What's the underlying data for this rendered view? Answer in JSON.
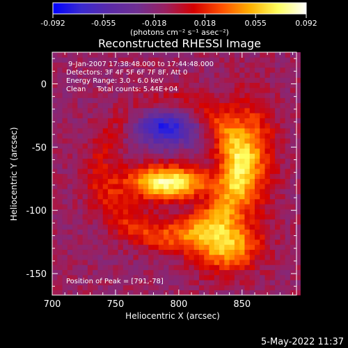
{
  "chart_data": {
    "type": "heatmap",
    "title": "Reconstructed RHESSI Image",
    "xlabel": "Heliocentric X (arcsec)",
    "ylabel": "Heliocentric Y (arcsec)",
    "xlim": [
      700,
      893
    ],
    "ylim": [
      -167,
      25
    ],
    "xticks": [
      700,
      750,
      800,
      850
    ],
    "yticks": [
      0,
      -50,
      -100,
      -150
    ],
    "colorbar": {
      "min": -0.092,
      "max": 0.092,
      "ticks": [
        "-0.092",
        "-0.055",
        "-0.018",
        "0.018",
        "0.055",
        "0.092"
      ],
      "units": "(photons cm⁻² s⁻¹ asec⁻²)",
      "colors": [
        "#0000ff",
        "#3a2ad0",
        "#5a2aa8",
        "#6f2f92",
        "#9a2060",
        "#d40000",
        "#ff5000",
        "#ffb000",
        "#ffff60",
        "#ffffff"
      ]
    },
    "annotations": {
      "time": "9-Jan-2007 17:38:48.000 to 17:44:48.000",
      "detectors": "Detectors: 3F 4F 5F 6F 7F 8F, Att 0",
      "energy": "Energy Range: 3.0 - 6.0 keV",
      "clean": "Clean     Total counts: 5.44E+04",
      "peak": "Position of Peak = [791,-78]"
    },
    "features": [
      {
        "kind": "peak",
        "x": 791,
        "y": -78,
        "amp": 0.092,
        "sx": 22,
        "sy": 9
      },
      {
        "kind": "ring",
        "cx": 792,
        "cy": -68,
        "r": 54,
        "amp": 0.045
      },
      {
        "kind": "arc",
        "x": 837,
        "y": -127,
        "amp": 0.07,
        "sx": 18,
        "sy": 14
      },
      {
        "kind": "arc",
        "x": 855,
        "y": -55,
        "amp": 0.05,
        "sx": 14,
        "sy": 30
      },
      {
        "kind": "hole",
        "x": 790,
        "y": -33,
        "amp": -0.07,
        "sx": 18,
        "sy": 11
      }
    ]
  },
  "footer": {
    "date": "5-May-2022 11:37"
  }
}
